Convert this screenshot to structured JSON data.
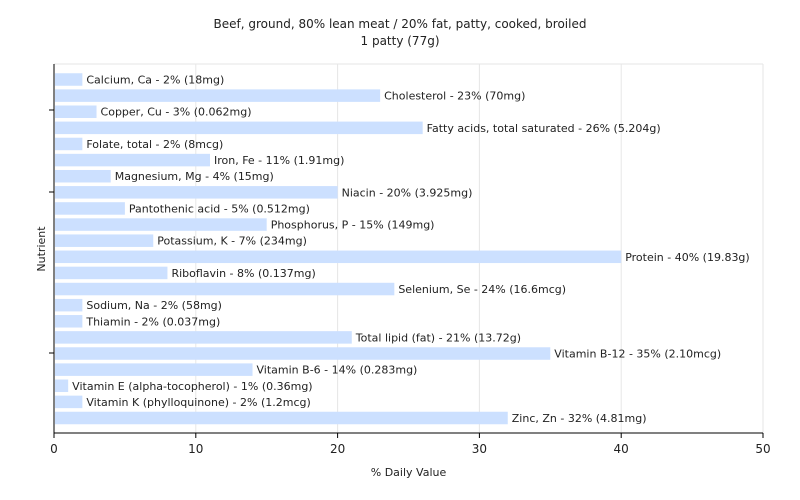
{
  "chart_data": {
    "type": "bar",
    "orientation": "horizontal",
    "title": "Beef, ground, 80% lean meat / 20% fat, patty, cooked, broiled",
    "subtitle": "1 patty (77g)",
    "xlabel": "% Daily Value",
    "ylabel": "Nutrient",
    "xlim": [
      0,
      50
    ],
    "xticks": [
      0,
      10,
      20,
      30,
      40,
      50
    ],
    "grid": true,
    "bar_color": "#cce0ff",
    "categories": [
      "Calcium, Ca",
      "Cholesterol",
      "Copper, Cu",
      "Fatty acids, total saturated",
      "Folate, total",
      "Iron, Fe",
      "Magnesium, Mg",
      "Niacin",
      "Pantothenic acid",
      "Phosphorus, P",
      "Potassium, K",
      "Protein",
      "Riboflavin",
      "Selenium, Se",
      "Sodium, Na",
      "Thiamin",
      "Total lipid (fat)",
      "Vitamin B-12",
      "Vitamin B-6",
      "Vitamin E (alpha-tocopherol)",
      "Vitamin K (phylloquinone)",
      "Zinc, Zn"
    ],
    "values": [
      2,
      23,
      3,
      26,
      2,
      11,
      4,
      20,
      5,
      15,
      7,
      40,
      8,
      24,
      2,
      2,
      21,
      35,
      14,
      1,
      2,
      32
    ],
    "labels": [
      "Calcium, Ca - 2% (18mg)",
      "Cholesterol - 23% (70mg)",
      "Copper, Cu - 3% (0.062mg)",
      "Fatty acids, total saturated - 26% (5.204g)",
      "Folate, total - 2% (8mcg)",
      "Iron, Fe - 11% (1.91mg)",
      "Magnesium, Mg - 4% (15mg)",
      "Niacin - 20% (3.925mg)",
      "Pantothenic acid - 5% (0.512mg)",
      "Phosphorus, P - 15% (149mg)",
      "Potassium, K - 7% (234mg)",
      "Protein - 40% (19.83g)",
      "Riboflavin - 8% (0.137mg)",
      "Selenium, Se - 24% (16.6mcg)",
      "Sodium, Na - 2% (58mg)",
      "Thiamin - 2% (0.037mg)",
      "Total lipid (fat) - 21% (13.72g)",
      "Vitamin B-12 - 35% (2.10mcg)",
      "Vitamin B-6 - 14% (0.283mg)",
      "Vitamin E (alpha-tocopherol) - 1% (0.36mg)",
      "Vitamin K (phylloquinone) - 2% (1.2mcg)",
      "Zinc, Zn - 32% (4.81mg)"
    ]
  }
}
